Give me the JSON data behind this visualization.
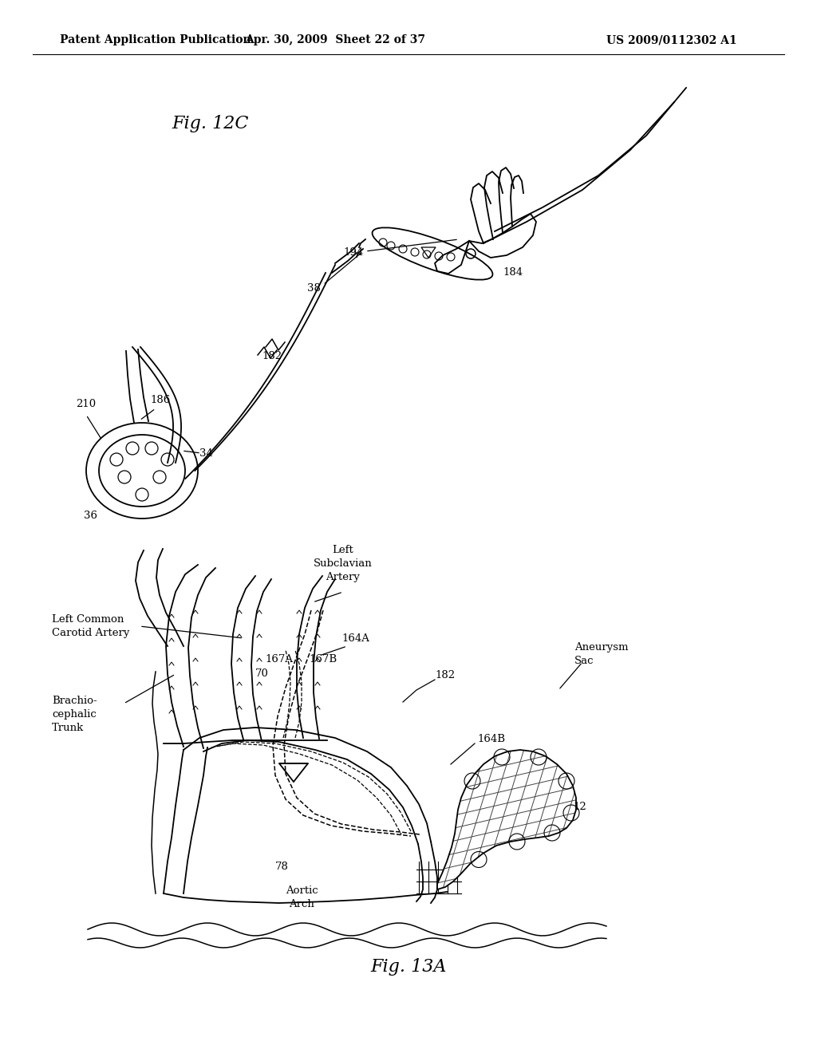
{
  "header_left": "Patent Application Publication",
  "header_middle": "Apr. 30, 2009  Sheet 22 of 37",
  "header_right": "US 2009/0112302 A1",
  "fig_top_label": "Fig. 12C",
  "fig_bottom_label": "Fig. 13A",
  "background_color": "#ffffff",
  "text_color": "#000000",
  "header_fontsize": 11,
  "annotation_fontsize": 9.5,
  "fig_label_fontsize": 15
}
